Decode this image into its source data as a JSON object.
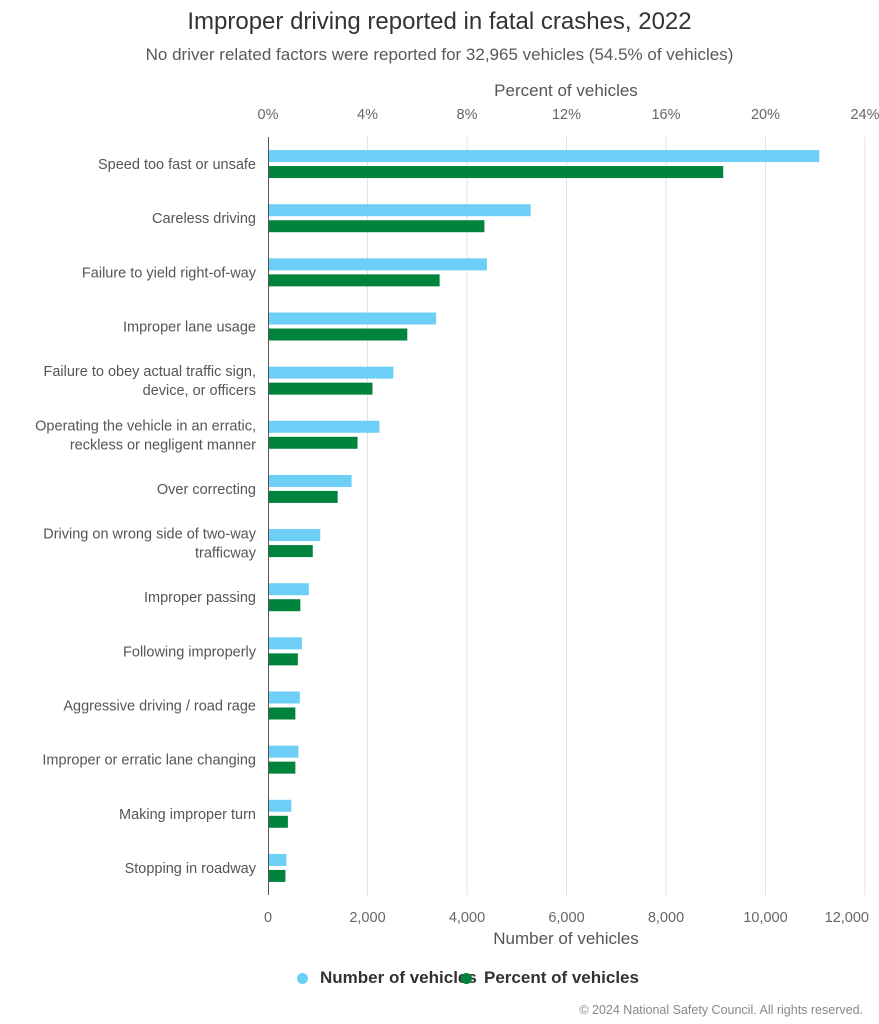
{
  "chart_data": {
    "type": "bar",
    "orientation": "horizontal",
    "title": "Improper driving reported in fatal crashes, 2022",
    "subtitle": "No driver related factors were reported for 32,965 vehicles (54.5% of vehicles)",
    "xlabel": "Number of vehicles",
    "x2label": "Percent of vehicles",
    "xlim": [
      0,
      12000
    ],
    "x2lim": [
      0,
      24
    ],
    "xticks": [
      "0",
      "2,000",
      "4,000",
      "6,000",
      "8,000",
      "10,000",
      "12,000"
    ],
    "x2ticks": [
      "0%",
      "4%",
      "8%",
      "12%",
      "16%",
      "20%",
      "24%"
    ],
    "grid": true,
    "legend_position": "bottom",
    "categories": [
      [
        "Speed too fast or unsafe"
      ],
      [
        "Careless driving"
      ],
      [
        "Failure to yield right-of-way"
      ],
      [
        "Improper lane usage"
      ],
      [
        "Failure to obey actual traffic sign,",
        "device, or officers"
      ],
      [
        "Operating the vehicle in an erratic,",
        "reckless or negligent manner"
      ],
      [
        "Over correcting"
      ],
      [
        "Driving on wrong side of two-way",
        "trafficway"
      ],
      [
        "Improper passing"
      ],
      [
        "Following improperly"
      ],
      [
        "Aggressive driving / road rage"
      ],
      [
        "Improper or erratic lane changing"
      ],
      [
        "Making improper turn"
      ],
      [
        "Stopping in roadway"
      ]
    ],
    "series": [
      {
        "name": "Number of vehicles",
        "color": "#6dcff6",
        "axis": "bottom",
        "values": [
          11080,
          5280,
          4400,
          3380,
          2520,
          2240,
          1680,
          1050,
          820,
          680,
          640,
          610,
          470,
          370
        ]
      },
      {
        "name": "Percent of vehicles",
        "color": "#00843d",
        "axis": "top",
        "values": [
          18.3,
          8.7,
          6.9,
          5.6,
          4.2,
          3.6,
          2.8,
          1.8,
          1.3,
          1.2,
          1.1,
          1.1,
          0.8,
          0.7
        ]
      }
    ]
  },
  "legend": [
    {
      "label": "Number of vehicles",
      "color": "#6dcff6"
    },
    {
      "label": "Percent of vehicles",
      "color": "#00843d"
    }
  ],
  "credit": "© 2024 National Safety Council. All rights reserved."
}
